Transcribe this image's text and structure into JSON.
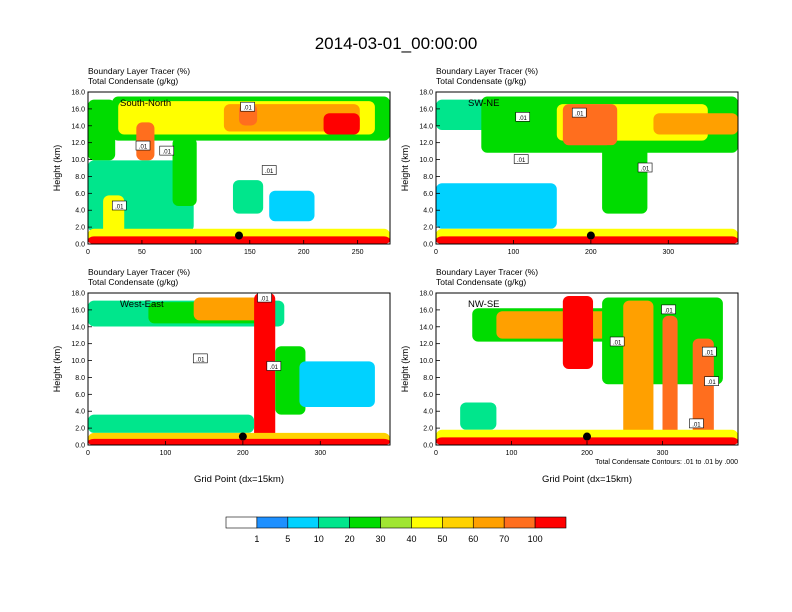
{
  "title": "2014-03-01_00:00:00",
  "legend": {
    "colors": [
      "#ffffff",
      "#1e90ff",
      "#00d2ff",
      "#00e68c",
      "#00dc00",
      "#a0e632",
      "#ffff00",
      "#ffd200",
      "#ffa000",
      "#ff6e1e",
      "#ff0000"
    ],
    "labels": [
      "1",
      "5",
      "10",
      "20",
      "30",
      "40",
      "50",
      "60",
      "70",
      "100"
    ]
  },
  "footnote": "Total Condensate Contours: .01 to .01 by .000",
  "chart_data": [
    {
      "type": "heatmap",
      "panel": "South-North",
      "title_line1": "Boundary Layer Tracer    (%)",
      "title_line2": "Total Condensate    (g/kg)",
      "ylabel": "Height (km)",
      "xlabel": "",
      "ylim": [
        0,
        18
      ],
      "xlim": [
        0,
        280
      ],
      "yticks": [
        "0.0",
        "2.0",
        "4.0",
        "6.0",
        "8.0",
        "10.0",
        "12.0",
        "14.0",
        "16.0",
        "18.0"
      ],
      "xticks": [
        0,
        50,
        100,
        150,
        200,
        250
      ],
      "marker": {
        "x": 140,
        "y": 1.0
      },
      "contour_labels": [
        {
          "x": 148,
          "y": 16.2,
          "text": ".01"
        },
        {
          "x": 51,
          "y": 11.6,
          "text": ".01"
        },
        {
          "x": 73,
          "y": 11.0,
          "text": ".01"
        },
        {
          "x": 168,
          "y": 8.7,
          "text": ".01"
        },
        {
          "x": 29,
          "y": 4.5,
          "text": ".01"
        }
      ]
    },
    {
      "type": "heatmap",
      "panel": "SW-NE",
      "title_line1": "Boundary Layer Tracer    (%)",
      "title_line2": "Total Condensate    (g/kg)",
      "ylabel": "Height (km)",
      "xlabel": "",
      "ylim": [
        0,
        18
      ],
      "xlim": [
        0,
        390
      ],
      "yticks": [
        "0.0",
        "2.0",
        "4.0",
        "6.0",
        "8.0",
        "10.0",
        "12.0",
        "14.0",
        "16.0",
        "18.0"
      ],
      "xticks": [
        0,
        100,
        200,
        300
      ],
      "marker": {
        "x": 200,
        "y": 1.0
      },
      "contour_labels": [
        {
          "x": 185,
          "y": 15.5,
          "text": ".01"
        },
        {
          "x": 112,
          "y": 15.0,
          "text": ".01"
        },
        {
          "x": 110,
          "y": 10.0,
          "text": ".01"
        },
        {
          "x": 270,
          "y": 9.0,
          "text": ".01"
        }
      ]
    },
    {
      "type": "heatmap",
      "panel": "West-East",
      "title_line1": "Boundary Layer Tracer    (%)",
      "title_line2": "Total Condensate    (g/kg)",
      "ylabel": "Height (km)",
      "xlabel": "Grid Point (dx=15km)",
      "ylim": [
        0,
        18
      ],
      "xlim": [
        0,
        390
      ],
      "yticks": [
        "0.0",
        "2.0",
        "4.0",
        "6.0",
        "8.0",
        "10.0",
        "12.0",
        "14.0",
        "16.0",
        "18.0"
      ],
      "xticks": [
        0,
        100,
        200,
        300
      ],
      "marker": {
        "x": 200,
        "y": 1.0
      },
      "contour_labels": [
        {
          "x": 228,
          "y": 17.4,
          "text": ".01"
        },
        {
          "x": 145,
          "y": 10.2,
          "text": ".01"
        },
        {
          "x": 240,
          "y": 9.3,
          "text": ".01"
        }
      ]
    },
    {
      "type": "heatmap",
      "panel": "NW-SE",
      "title_line1": "Boundary Layer Tracer    (%)",
      "title_line2": "Total Condensate    (g/kg)",
      "ylabel": "Height (km)",
      "xlabel": "Grid Point (dx=15km)",
      "ylim": [
        0,
        18
      ],
      "xlim": [
        0,
        400
      ],
      "yticks": [
        "0.0",
        "2.0",
        "4.0",
        "6.0",
        "8.0",
        "10.0",
        "12.0",
        "14.0",
        "16.0",
        "18.0"
      ],
      "xticks": [
        0,
        100,
        200,
        300
      ],
      "marker": {
        "x": 200,
        "y": 1.0
      },
      "contour_labels": [
        {
          "x": 308,
          "y": 16.0,
          "text": ".01"
        },
        {
          "x": 240,
          "y": 12.2,
          "text": ".01"
        },
        {
          "x": 362,
          "y": 11.0,
          "text": ".01"
        },
        {
          "x": 365,
          "y": 7.5,
          "text": ".01"
        },
        {
          "x": 345,
          "y": 2.5,
          "text": ".01"
        }
      ]
    }
  ]
}
